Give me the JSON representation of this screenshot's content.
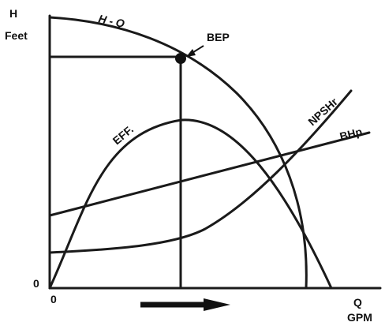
{
  "axis_labels": {
    "y_top": "H",
    "y_unit": "Feet",
    "y_origin": "0",
    "x_origin": "0",
    "x_name": "Q",
    "x_unit": "GPM"
  },
  "curve_labels": {
    "head": "H - Q",
    "bep": "BEP",
    "efficiency": "EFF.",
    "npsh": "NPSHr",
    "power": "BHp"
  }
}
